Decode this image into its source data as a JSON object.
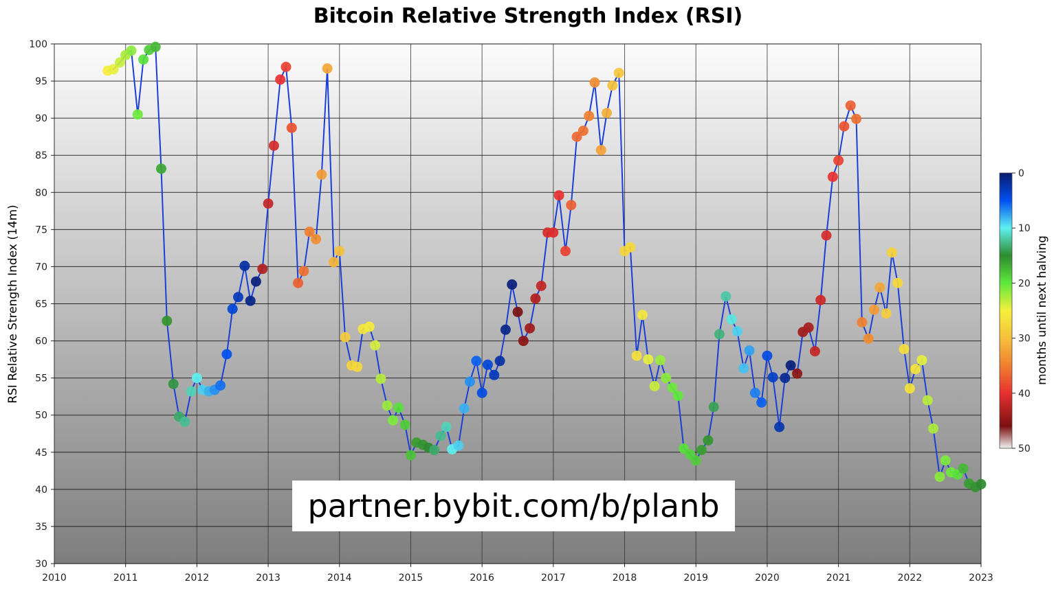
{
  "title": "Bitcoin Relative Strength Index (RSI)",
  "watermark": "partner.bybit.com/b/planb",
  "colorbar": {
    "label": "months until next halving",
    "ticks": [
      "0",
      "10",
      "20",
      "30",
      "40",
      "50"
    ],
    "stops": [
      {
        "v": 0,
        "c": "#0a1a6e"
      },
      {
        "v": 5,
        "c": "#0050f0"
      },
      {
        "v": 10,
        "c": "#5ff0f0"
      },
      {
        "v": 15,
        "c": "#2e8b2e"
      },
      {
        "v": 20,
        "c": "#5ee83c"
      },
      {
        "v": 25,
        "c": "#f5f03c"
      },
      {
        "v": 30,
        "c": "#f5c03c"
      },
      {
        "v": 35,
        "c": "#f08030"
      },
      {
        "v": 40,
        "c": "#e83030"
      },
      {
        "v": 46,
        "c": "#7a1010"
      },
      {
        "v": 50,
        "c": "#f2f2f2"
      }
    ]
  },
  "chart_data": {
    "type": "scatter",
    "title": "Bitcoin Relative Strength Index (RSI)",
    "xlabel": "",
    "ylabel": "RSI Relative Strength Index (14m)",
    "colorbar_label": "months until next halving",
    "xlim": [
      2010,
      2023
    ],
    "ylim": [
      30,
      100
    ],
    "xticks": [
      "2010",
      "2011",
      "2012",
      "2013",
      "2014",
      "2015",
      "2016",
      "2017",
      "2018",
      "2019",
      "2020",
      "2021",
      "2022",
      "2023"
    ],
    "yticks": [
      "30",
      "35",
      "40",
      "45",
      "50",
      "55",
      "60",
      "65",
      "70",
      "75",
      "80",
      "85",
      "90",
      "95",
      "100"
    ],
    "grid": true,
    "line_color": "#1a3fd6",
    "points": [
      [
        2010.75,
        96.4,
        25.5
      ],
      [
        2010.83,
        96.6,
        24.5
      ],
      [
        2010.92,
        97.5,
        23.5
      ],
      [
        2011.0,
        98.5,
        22.5
      ],
      [
        2011.08,
        99.1,
        21.5
      ],
      [
        2011.17,
        90.5,
        20.5
      ],
      [
        2011.25,
        97.9,
        19.5
      ],
      [
        2011.33,
        99.2,
        18.5
      ],
      [
        2011.42,
        99.6,
        17.5
      ],
      [
        2011.5,
        83.2,
        16.5
      ],
      [
        2011.58,
        62.7,
        15.5
      ],
      [
        2011.67,
        54.2,
        14.5
      ],
      [
        2011.75,
        49.8,
        13.5
      ],
      [
        2011.83,
        49.1,
        12.5
      ],
      [
        2011.92,
        53.2,
        11.5
      ],
      [
        2012.0,
        55.0,
        10.0
      ],
      [
        2012.08,
        53.4,
        9.0
      ],
      [
        2012.17,
        53.2,
        8.0
      ],
      [
        2012.25,
        53.4,
        7.0
      ],
      [
        2012.33,
        54.0,
        6.0
      ],
      [
        2012.42,
        58.2,
        5.0
      ],
      [
        2012.5,
        64.3,
        4.0
      ],
      [
        2012.58,
        65.9,
        3.0
      ],
      [
        2012.67,
        70.1,
        2.0
      ],
      [
        2012.75,
        65.4,
        1.0
      ],
      [
        2012.83,
        68.0,
        0.5
      ],
      [
        2012.92,
        69.7,
        43.0
      ],
      [
        2013.0,
        78.5,
        42.0
      ],
      [
        2013.08,
        86.3,
        41.0
      ],
      [
        2013.17,
        95.2,
        40.0
      ],
      [
        2013.25,
        96.9,
        39.0
      ],
      [
        2013.33,
        88.7,
        38.0
      ],
      [
        2013.42,
        67.8,
        37.0
      ],
      [
        2013.5,
        69.4,
        36.0
      ],
      [
        2013.58,
        74.7,
        35.0
      ],
      [
        2013.67,
        73.7,
        34.0
      ],
      [
        2013.75,
        82.4,
        33.0
      ],
      [
        2013.83,
        96.7,
        32.0
      ],
      [
        2013.92,
        70.6,
        31.0
      ],
      [
        2014.0,
        72.1,
        30.0
      ],
      [
        2014.08,
        60.5,
        29.0
      ],
      [
        2014.17,
        56.7,
        28.0
      ],
      [
        2014.25,
        56.5,
        27.5
      ],
      [
        2014.33,
        61.6,
        26.0
      ],
      [
        2014.42,
        61.9,
        25.5
      ],
      [
        2014.5,
        59.4,
        24.0
      ],
      [
        2014.58,
        54.9,
        23.0
      ],
      [
        2014.67,
        51.3,
        22.0
      ],
      [
        2014.75,
        49.3,
        21.0
      ],
      [
        2014.83,
        51.0,
        19.5
      ],
      [
        2014.92,
        48.7,
        18.5
      ],
      [
        2015.0,
        44.6,
        18.0
      ],
      [
        2015.08,
        46.3,
        16.0
      ],
      [
        2015.17,
        46.0,
        15.5
      ],
      [
        2015.25,
        45.6,
        15.0
      ],
      [
        2015.33,
        45.3,
        13.5
      ],
      [
        2015.42,
        47.2,
        12.5
      ],
      [
        2015.5,
        48.4,
        11.5
      ],
      [
        2015.58,
        45.4,
        10.0
      ],
      [
        2015.67,
        45.9,
        9.0
      ],
      [
        2015.75,
        50.9,
        8.0
      ],
      [
        2015.83,
        54.5,
        7.0
      ],
      [
        2015.92,
        57.3,
        5.5
      ],
      [
        2016.0,
        53.0,
        4.5
      ],
      [
        2016.08,
        56.8,
        4.0
      ],
      [
        2016.17,
        55.4,
        3.0
      ],
      [
        2016.25,
        57.3,
        2.0
      ],
      [
        2016.33,
        61.5,
        1.0
      ],
      [
        2016.42,
        67.6,
        0.5
      ],
      [
        2016.5,
        63.9,
        46.0
      ],
      [
        2016.58,
        60.0,
        45.0
      ],
      [
        2016.67,
        61.7,
        44.0
      ],
      [
        2016.75,
        65.7,
        43.0
      ],
      [
        2016.83,
        67.4,
        42.0
      ],
      [
        2016.92,
        74.6,
        41.0
      ],
      [
        2017.0,
        74.6,
        40.5
      ],
      [
        2017.08,
        79.6,
        40.0
      ],
      [
        2017.17,
        72.1,
        39.0
      ],
      [
        2017.25,
        78.3,
        37.0
      ],
      [
        2017.33,
        87.5,
        36.5
      ],
      [
        2017.42,
        88.3,
        36.0
      ],
      [
        2017.5,
        90.3,
        35.0
      ],
      [
        2017.58,
        94.8,
        34.0
      ],
      [
        2017.67,
        85.7,
        32.5
      ],
      [
        2017.75,
        90.7,
        31.5
      ],
      [
        2017.83,
        94.4,
        30.0
      ],
      [
        2017.92,
        96.1,
        29.5
      ],
      [
        2018.0,
        72.1,
        28.0
      ],
      [
        2018.08,
        72.6,
        27.5
      ],
      [
        2018.17,
        58.0,
        26.5
      ],
      [
        2018.25,
        63.5,
        26.0
      ],
      [
        2018.33,
        57.5,
        24.5
      ],
      [
        2018.42,
        53.9,
        23.5
      ],
      [
        2018.5,
        57.4,
        22.0
      ],
      [
        2018.58,
        55.0,
        21.5
      ],
      [
        2018.67,
        53.7,
        20.5
      ],
      [
        2018.75,
        52.6,
        20.0
      ],
      [
        2018.83,
        45.5,
        19.5
      ],
      [
        2018.92,
        44.7,
        19.0
      ],
      [
        2019.0,
        43.9,
        18.5
      ],
      [
        2019.08,
        45.3,
        16.0
      ],
      [
        2019.17,
        46.6,
        15.5
      ],
      [
        2019.25,
        51.1,
        14.0
      ],
      [
        2019.33,
        60.9,
        13.0
      ],
      [
        2019.42,
        66.0,
        12.0
      ],
      [
        2019.5,
        62.9,
        10.5
      ],
      [
        2019.58,
        61.3,
        9.0
      ],
      [
        2019.67,
        56.3,
        8.5
      ],
      [
        2019.75,
        58.7,
        7.5
      ],
      [
        2019.83,
        53.0,
        6.5
      ],
      [
        2019.92,
        51.7,
        5.5
      ],
      [
        2020.0,
        58.0,
        4.5
      ],
      [
        2020.08,
        55.1,
        3.5
      ],
      [
        2020.17,
        48.4,
        2.5
      ],
      [
        2020.25,
        55.0,
        1.5
      ],
      [
        2020.33,
        56.7,
        0.5
      ],
      [
        2020.42,
        55.6,
        45.0
      ],
      [
        2020.5,
        61.2,
        44.0
      ],
      [
        2020.58,
        61.8,
        43.5
      ],
      [
        2020.67,
        58.6,
        42.0
      ],
      [
        2020.75,
        65.5,
        41.5
      ],
      [
        2020.83,
        74.2,
        41.0
      ],
      [
        2020.92,
        82.1,
        40.0
      ],
      [
        2021.0,
        84.3,
        39.0
      ],
      [
        2021.08,
        88.9,
        38.0
      ],
      [
        2021.17,
        91.7,
        37.0
      ],
      [
        2021.25,
        89.9,
        36.0
      ],
      [
        2021.33,
        62.5,
        35.0
      ],
      [
        2021.42,
        60.3,
        34.0
      ],
      [
        2021.5,
        64.2,
        33.0
      ],
      [
        2021.58,
        67.2,
        32.0
      ],
      [
        2021.67,
        63.7,
        28.5
      ],
      [
        2021.75,
        71.9,
        28.0
      ],
      [
        2021.83,
        67.8,
        27.5
      ],
      [
        2021.92,
        58.9,
        27.0
      ],
      [
        2022.0,
        53.6,
        26.5
      ],
      [
        2022.08,
        56.2,
        26.5
      ],
      [
        2022.17,
        57.4,
        24.5
      ],
      [
        2022.25,
        52.0,
        23.0
      ],
      [
        2022.33,
        48.2,
        22.5
      ],
      [
        2022.42,
        41.7,
        21.5
      ],
      [
        2022.5,
        43.9,
        21.0
      ],
      [
        2022.58,
        42.3,
        20.5
      ],
      [
        2022.67,
        42.0,
        19.5
      ],
      [
        2022.75,
        42.8,
        17.5
      ],
      [
        2022.83,
        40.8,
        16.0
      ],
      [
        2022.92,
        40.3,
        15.5
      ],
      [
        2023.0,
        40.7,
        15.0
      ]
    ]
  }
}
